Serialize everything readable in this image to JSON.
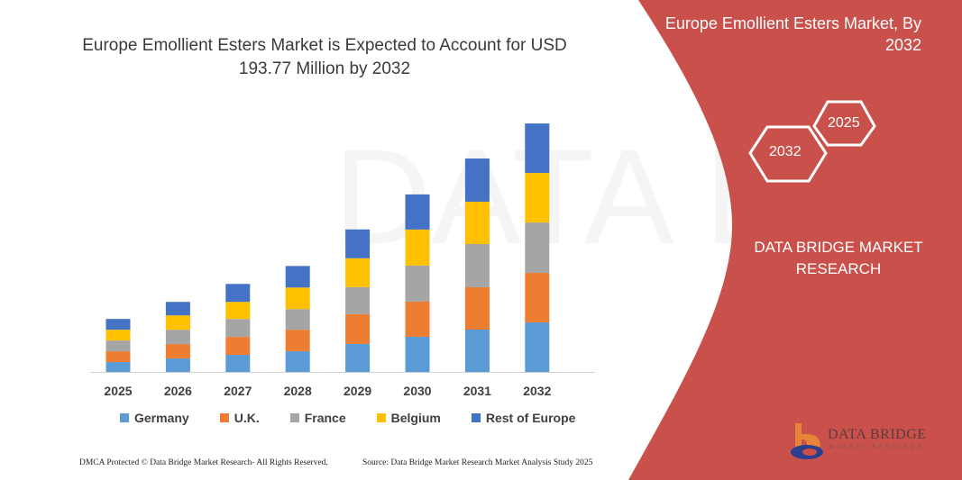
{
  "title": "Europe Emollient Esters Market is Expected to Account for USD 193.77 Million by 2032",
  "side_panel": {
    "title": "Europe Emollient Esters Market, By 2032",
    "hex_years": [
      "2032",
      "2025"
    ],
    "brand": "DATA BRIDGE MARKET RESEARCH",
    "logo_text": "DATA BRIDGE",
    "logo_sub": "MARKET RESEARCH",
    "color": "#c9504b"
  },
  "footer": {
    "left": "DMCA Protected © Data Bridge Market Research- All Rights Reserved.",
    "right": "Source: Data Bridge Market Research Market Analysis Study 2025"
  },
  "chart_data": {
    "type": "bar",
    "stacked": true,
    "categories": [
      "2025",
      "2026",
      "2027",
      "2028",
      "2029",
      "2030",
      "2031",
      "2032"
    ],
    "series": [
      {
        "name": "Germany",
        "color": "#5b9bd5",
        "values": [
          7.7,
          10.5,
          13.3,
          16.1,
          21.8,
          27.4,
          33.0,
          38.6
        ]
      },
      {
        "name": "U.K.",
        "color": "#ed7d31",
        "values": [
          8.4,
          11.2,
          14.0,
          16.8,
          23.2,
          27.4,
          33.0,
          38.6
        ]
      },
      {
        "name": "France",
        "color": "#a5a5a5",
        "values": [
          8.4,
          11.2,
          14.0,
          16.1,
          21.1,
          28.1,
          33.7,
          39.3
        ]
      },
      {
        "name": "Belgium",
        "color": "#ffc000",
        "values": [
          8.4,
          11.2,
          13.3,
          16.8,
          22.5,
          28.1,
          33.0,
          38.6
        ]
      },
      {
        "name": "Rest of Europe",
        "color": "#4472c4",
        "values": [
          8.4,
          10.5,
          14.0,
          16.8,
          22.5,
          27.4,
          33.7,
          38.6
        ]
      }
    ],
    "ylim": [
      0,
      193.77
    ],
    "y_axis_visible": false,
    "grid": false,
    "legend_position": "bottom"
  }
}
